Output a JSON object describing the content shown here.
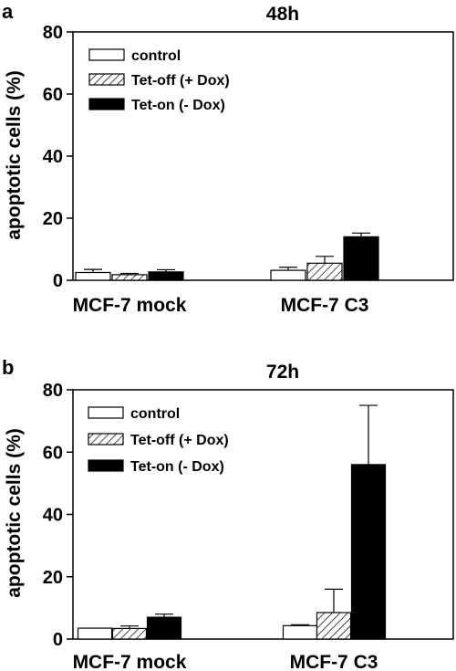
{
  "chart_data": [
    {
      "type": "bar",
      "panel": "a",
      "title": "48h",
      "ylabel": "apoptotic cells (%)",
      "xlabel": "",
      "ylim": [
        0,
        80
      ],
      "yticks": [
        "0",
        "20",
        "40",
        "60",
        "80"
      ],
      "categories": [
        "MCF-7 mock",
        "MCF-7 C3"
      ],
      "legend_position": "top-left",
      "series": [
        {
          "name": "control",
          "fill": "white",
          "values": [
            2.5,
            3.2
          ],
          "errors": [
            1.0,
            1.0
          ]
        },
        {
          "name": "Tet-off (+ Dox)",
          "fill": "hatched",
          "values": [
            1.8,
            5.5
          ],
          "errors": [
            0.4,
            2.2
          ]
        },
        {
          "name": "Tet-on (- Dox)",
          "fill": "black",
          "values": [
            2.7,
            14.0
          ],
          "errors": [
            0.7,
            1.2
          ]
        }
      ]
    },
    {
      "type": "bar",
      "panel": "b",
      "title": "72h",
      "ylabel": "apoptotic cells (%)",
      "xlabel": "",
      "ylim": [
        0,
        80
      ],
      "yticks": [
        "0",
        "20",
        "40",
        "60",
        "80"
      ],
      "categories": [
        "MCF-7 mock",
        "MCF-7 C3"
      ],
      "legend_position": "top-left",
      "series": [
        {
          "name": "control",
          "fill": "white",
          "values": [
            3.5,
            4.3
          ],
          "errors": [
            0.0,
            0.3
          ]
        },
        {
          "name": "Tet-off (+ Dox)",
          "fill": "hatched",
          "values": [
            3.4,
            8.5
          ],
          "errors": [
            0.8,
            7.5
          ]
        },
        {
          "name": "Tet-on (- Dox)",
          "fill": "black",
          "values": [
            7.0,
            56.0
          ],
          "errors": [
            1.0,
            19.0
          ]
        }
      ]
    }
  ]
}
